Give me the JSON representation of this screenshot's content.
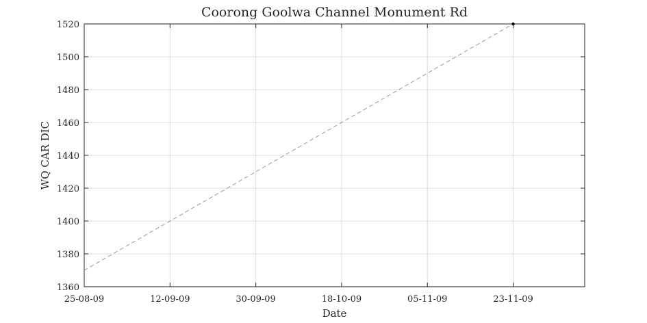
{
  "chart_data": {
    "type": "line",
    "title": "Coorong Goolwa Channel Monument Rd",
    "xlabel": "Date",
    "ylabel": "WQ CAR DIC",
    "x_ticks": [
      "25-08-09",
      "12-09-09",
      "30-09-09",
      "18-10-09",
      "05-11-09",
      "23-11-09"
    ],
    "xlim": [
      "2009-08-25",
      "2009-12-08"
    ],
    "ylim": [
      1360,
      1520
    ],
    "y_ticks": [
      1360,
      1380,
      1400,
      1420,
      1440,
      1460,
      1480,
      1500,
      1520
    ],
    "grid": true,
    "series": [
      {
        "style": "dashed",
        "color": "#999999",
        "points": [
          {
            "date": "2009-08-25",
            "value": 1370
          },
          {
            "date": "2009-11-23",
            "value": 1520
          }
        ]
      },
      {
        "style": "markers",
        "color": "#000000",
        "points": [
          {
            "date": "2009-11-23",
            "value": 1520
          }
        ]
      }
    ]
  }
}
